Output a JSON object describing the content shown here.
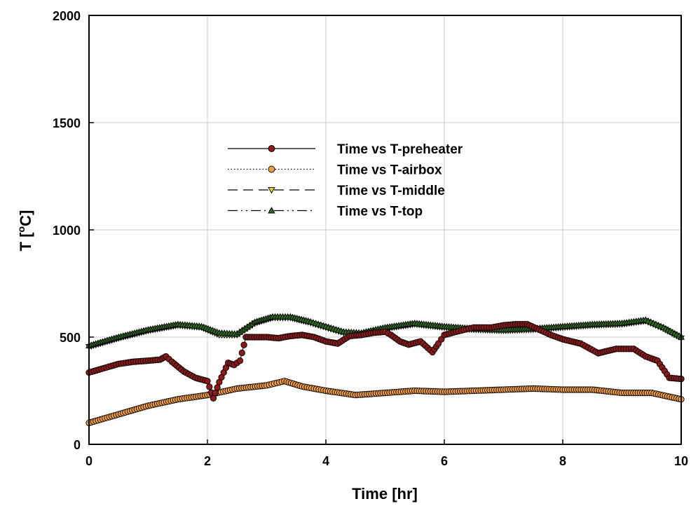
{
  "chart_data": {
    "type": "scatter",
    "title": "",
    "xlabel": "Time [hr]",
    "ylabel_main": "T [",
    "ylabel_sup": "o",
    "ylabel_tail": "C]",
    "xlim": [
      0,
      10
    ],
    "ylim": [
      0,
      2000
    ],
    "xticks": [
      0,
      2,
      4,
      6,
      8,
      10
    ],
    "yticks": [
      0,
      500,
      1000,
      1500,
      2000
    ],
    "xtick_labels": [
      "0",
      "2",
      "4",
      "6",
      "8",
      "10"
    ],
    "ytick_labels": [
      "0",
      "500",
      "1000",
      "1500",
      "2000"
    ],
    "grid": true,
    "legend_position": "upper-center",
    "series": [
      {
        "name": "Time vs T-preheater",
        "marker": "circle",
        "line_style": "solid",
        "color": "#8B1A1A",
        "x": [
          0,
          0.25,
          0.5,
          0.75,
          1.0,
          1.2,
          1.3,
          1.4,
          1.6,
          1.8,
          2.0,
          2.1,
          2.2,
          2.35,
          2.45,
          2.55,
          2.65,
          2.75,
          3.0,
          3.2,
          3.4,
          3.6,
          3.8,
          4.0,
          4.2,
          4.4,
          4.6,
          4.8,
          5.0,
          5.1,
          5.25,
          5.4,
          5.6,
          5.8,
          5.9,
          6.0,
          6.2,
          6.5,
          6.8,
          7.0,
          7.2,
          7.4,
          7.6,
          7.8,
          8.0,
          8.3,
          8.6,
          8.9,
          9.2,
          9.4,
          9.6,
          9.8,
          10.0
        ],
        "y": [
          335,
          355,
          375,
          385,
          390,
          395,
          410,
          385,
          340,
          310,
          295,
          215,
          290,
          380,
          370,
          390,
          500,
          500,
          500,
          495,
          505,
          510,
          500,
          480,
          470,
          505,
          510,
          520,
          525,
          510,
          480,
          465,
          480,
          430,
          470,
          510,
          525,
          545,
          545,
          555,
          560,
          560,
          535,
          510,
          490,
          470,
          425,
          445,
          445,
          410,
          390,
          310,
          305
        ]
      },
      {
        "name": "Time vs T-airbox",
        "marker": "circle",
        "line_style": "dotted",
        "color": "#F4A040",
        "x": [
          0,
          0.5,
          1.0,
          1.5,
          2.0,
          2.5,
          3.0,
          3.3,
          3.6,
          4.0,
          4.5,
          5.0,
          5.5,
          6.0,
          6.5,
          7.0,
          7.5,
          8.0,
          8.5,
          9.0,
          9.5,
          10.0
        ],
        "y": [
          100,
          140,
          180,
          210,
          230,
          260,
          275,
          295,
          270,
          250,
          230,
          240,
          250,
          245,
          250,
          255,
          260,
          255,
          255,
          240,
          240,
          210
        ]
      },
      {
        "name": "Time vs T-middle",
        "marker": "triangle-down",
        "line_style": "dashed",
        "color": "#D4D430",
        "x": [
          0,
          0.5,
          1.0,
          1.5,
          1.9,
          2.2,
          2.5,
          2.8,
          3.1,
          3.4,
          3.7,
          4.0,
          4.3,
          4.6,
          5.0,
          5.5,
          6.0,
          6.5,
          7.0,
          7.5,
          8.0,
          8.5,
          9.0,
          9.4,
          9.7,
          10.0
        ],
        "y": [
          455,
          495,
          530,
          555,
          545,
          510,
          510,
          565,
          590,
          590,
          570,
          545,
          520,
          515,
          540,
          560,
          545,
          535,
          530,
          535,
          545,
          555,
          560,
          575,
          540,
          495
        ]
      },
      {
        "name": "Time vs T-top",
        "marker": "triangle-up",
        "line_style": "dashdot",
        "color": "#2E6B1E",
        "x": [
          0,
          0.5,
          1.0,
          1.5,
          1.9,
          2.2,
          2.5,
          2.8,
          3.1,
          3.4,
          3.7,
          4.0,
          4.3,
          4.6,
          5.0,
          5.5,
          6.0,
          6.5,
          7.0,
          7.5,
          8.0,
          8.5,
          9.0,
          9.4,
          9.7,
          10.0
        ],
        "y": [
          460,
          500,
          535,
          560,
          550,
          520,
          515,
          570,
          595,
          595,
          575,
          550,
          525,
          520,
          545,
          565,
          550,
          540,
          535,
          540,
          550,
          560,
          565,
          580,
          545,
          500
        ]
      }
    ]
  }
}
